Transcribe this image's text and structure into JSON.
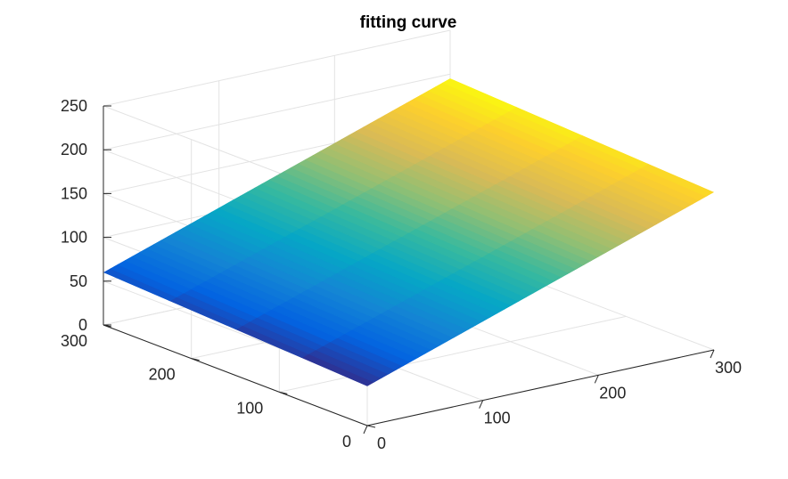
{
  "chart_data": {
    "type": "surface",
    "title": "fitting curve",
    "xlabel": "",
    "ylabel": "",
    "zlabel": "",
    "grid": true,
    "colormap": "parula",
    "colormap_colors": [
      "#352a87",
      "#0363e1",
      "#1485d4",
      "#06a7c6",
      "#38b99e",
      "#92bf73",
      "#d9ba56",
      "#fcce2e",
      "#f9fb0e"
    ],
    "xlim": [
      0,
      300
    ],
    "ylim": [
      0,
      300
    ],
    "zlim": [
      0,
      250
    ],
    "xticks": [
      0,
      100,
      200,
      300
    ],
    "yticks": [
      0,
      100,
      200,
      300
    ],
    "zticks": [
      0,
      50,
      100,
      150,
      200,
      250
    ],
    "xtick_labels": [
      "0",
      "100",
      "200",
      "300"
    ],
    "ytick_labels": [
      "0",
      "100",
      "200",
      "300"
    ],
    "ztick_labels": [
      "0",
      "50",
      "100",
      "150",
      "200",
      "250"
    ],
    "surface": {
      "x": [
        0,
        300
      ],
      "y": [
        0,
        300
      ],
      "z": [
        [
          45,
          180
        ],
        [
          60,
          195
        ]
      ]
    }
  }
}
